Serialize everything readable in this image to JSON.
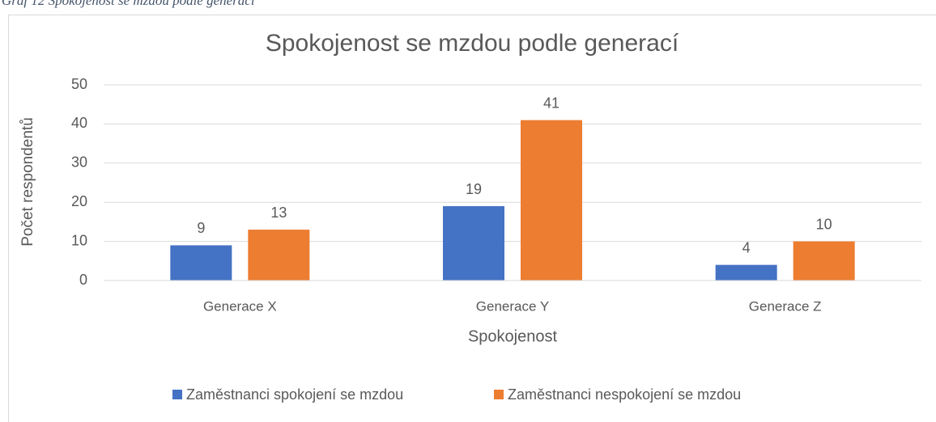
{
  "caption": "Graf 12 Spokojenost se mzdou podle generací",
  "chart_data": {
    "type": "bar",
    "title": "Spokojenost se mzdou podle generací",
    "x_label": "Spokojenost",
    "y_label": "Počet respondentů",
    "categories": [
      "Generace X",
      "Generace Y",
      "Generace Z"
    ],
    "series": [
      {
        "name": "Zaměstnanci spokojení se mzdou",
        "color": "#4472c4",
        "values": [
          9,
          19,
          4
        ]
      },
      {
        "name": "Zaměstnanci nespokojení se mzdou",
        "color": "#ed7d31",
        "values": [
          13,
          41,
          10
        ]
      }
    ],
    "ylim": [
      0,
      50
    ],
    "yticks": [
      0,
      10,
      20,
      30,
      40,
      50
    ],
    "grid": true,
    "legend": "bottom"
  }
}
